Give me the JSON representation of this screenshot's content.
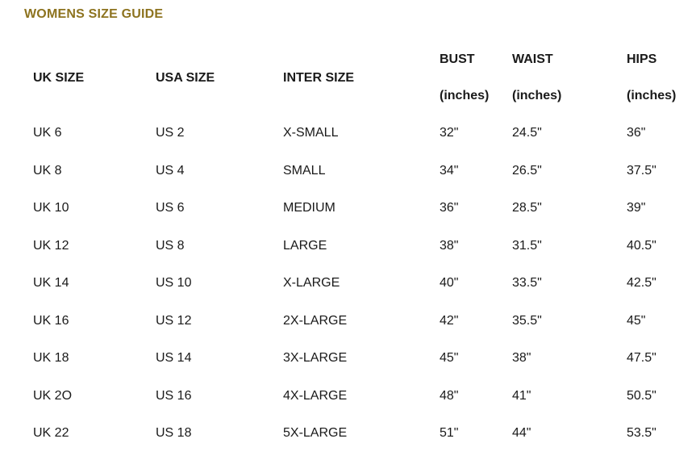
{
  "page": {
    "title": "WOMENS SIZE GUIDE"
  },
  "theme": {
    "title_color": "#8d731f",
    "text_color": "#1a1a1a",
    "background": "#ffffff"
  },
  "size_table": {
    "columns": [
      {
        "label": "UK SIZE",
        "sublabel": ""
      },
      {
        "label": "USA SIZE",
        "sublabel": ""
      },
      {
        "label": "INTER SIZE",
        "sublabel": ""
      },
      {
        "label": "BUST",
        "sublabel": "(inches)"
      },
      {
        "label": "WAIST",
        "sublabel": "(inches)"
      },
      {
        "label": "HIPS",
        "sublabel": "(inches)"
      }
    ],
    "rows": [
      [
        "UK 6",
        "US 2",
        "X-SMALL",
        "32\"",
        "24.5\"",
        "36\""
      ],
      [
        "UK 8",
        "US 4",
        "SMALL",
        "34\"",
        "26.5\"",
        "37.5\""
      ],
      [
        "UK 10",
        "US 6",
        "MEDIUM",
        "36\"",
        "28.5\"",
        "39\""
      ],
      [
        "UK 12",
        "US 8",
        "LARGE",
        "38\"",
        "31.5\"",
        "40.5\""
      ],
      [
        "UK 14",
        "US 10",
        "X-LARGE",
        "40\"",
        "33.5\"",
        "42.5\""
      ],
      [
        "UK 16",
        "US 12",
        "2X-LARGE",
        "42\"",
        "35.5\"",
        "45\""
      ],
      [
        "UK 18",
        "US 14",
        "3X-LARGE",
        "45\"",
        "38\"",
        "47.5\""
      ],
      [
        "UK 2O",
        "US 16",
        "4X-LARGE",
        "48\"",
        "41\"",
        "50.5\""
      ],
      [
        "UK 22",
        "US 18",
        "5X-LARGE",
        "51\"",
        "44\"",
        "53.5\""
      ]
    ]
  }
}
